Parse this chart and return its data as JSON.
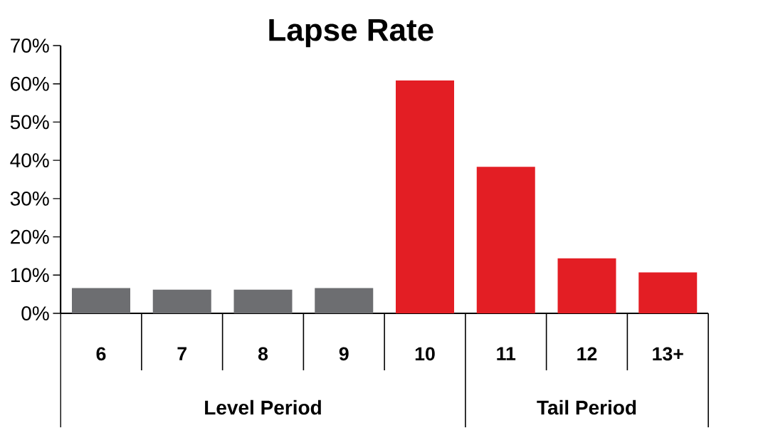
{
  "chart_data": {
    "type": "bar",
    "title": "Lapse Rate",
    "categories": [
      "6",
      "7",
      "8",
      "9",
      "10",
      "11",
      "12",
      "13+"
    ],
    "values": [
      6.6,
      6.2,
      6.2,
      6.6,
      60.9,
      38.3,
      14.4,
      10.7
    ],
    "colors": [
      "#6d6e71",
      "#6d6e71",
      "#6d6e71",
      "#6d6e71",
      "#e31e24",
      "#e31e24",
      "#e31e24",
      "#e31e24"
    ],
    "ylim": [
      0,
      70
    ],
    "yticks": [
      {
        "value": 0,
        "label": "0%"
      },
      {
        "value": 10,
        "label": "10%"
      },
      {
        "value": 20,
        "label": "20%"
      },
      {
        "value": 30,
        "label": "30%"
      },
      {
        "value": 40,
        "label": "40%"
      },
      {
        "value": 50,
        "label": "50%"
      },
      {
        "value": 60,
        "label": "60%"
      },
      {
        "value": 70,
        "label": "70%"
      }
    ],
    "annotations": [
      "Level Period",
      "Tail Period"
    ]
  }
}
